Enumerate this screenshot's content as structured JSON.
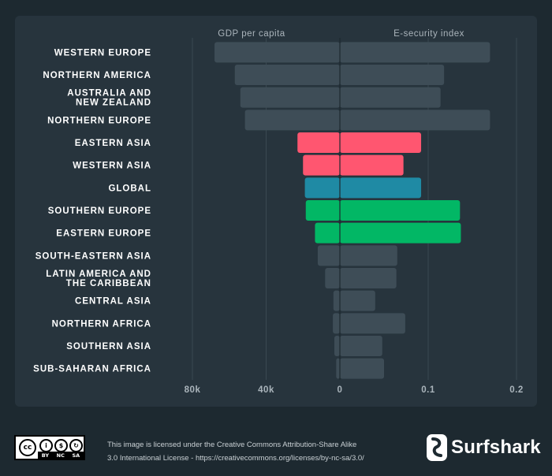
{
  "chart_data": {
    "type": "bar",
    "subtype": "diverging-horizontal",
    "left_header": "GDP per capita",
    "right_header": "E-security index",
    "left_axis": {
      "ticks": [
        "80k",
        "40k"
      ],
      "tick_values": [
        80000,
        40000
      ],
      "range": [
        0,
        82000
      ]
    },
    "center_tick": "0",
    "right_axis": {
      "ticks": [
        "0.1",
        "0.2"
      ],
      "tick_values": [
        0.1,
        0.2
      ],
      "range": [
        0,
        0.2
      ]
    },
    "colors": {
      "default": "#3e4d57",
      "red": "#ff5670",
      "teal": "#1f8aa4",
      "green": "#02b765",
      "global_label": "#1f8aa4",
      "label": "#ffffff"
    },
    "rows": [
      {
        "label": [
          "WESTERN EUROPE"
        ],
        "gdp": 68000,
        "esec": 0.17,
        "color": "default"
      },
      {
        "label": [
          "NORTHERN AMERICA"
        ],
        "gdp": 57000,
        "esec": 0.118,
        "color": "default"
      },
      {
        "label": [
          "AUSTRALIA AND",
          "NEW ZEALAND"
        ],
        "gdp": 54000,
        "esec": 0.114,
        "color": "default"
      },
      {
        "label": [
          "NORTHERN EUROPE"
        ],
        "gdp": 51500,
        "esec": 0.17,
        "color": "default"
      },
      {
        "label": [
          "EASTERN ASIA"
        ],
        "gdp": 23000,
        "esec": 0.092,
        "color": "red"
      },
      {
        "label": [
          "WESTERN ASIA"
        ],
        "gdp": 20000,
        "esec": 0.072,
        "color": "red"
      },
      {
        "label": [
          "GLOBAL"
        ],
        "gdp": 19000,
        "esec": 0.092,
        "color": "teal",
        "label_color": "global_label"
      },
      {
        "label": [
          "SOUTHERN EUROPE"
        ],
        "gdp": 18500,
        "esec": 0.136,
        "color": "green"
      },
      {
        "label": [
          "EASTERN EUROPE"
        ],
        "gdp": 13500,
        "esec": 0.137,
        "color": "green"
      },
      {
        "label": [
          "SOUTH-EASTERN ASIA"
        ],
        "gdp": 12000,
        "esec": 0.065,
        "color": "default"
      },
      {
        "label": [
          "LATIN AMERICA AND",
          "THE CARIBBEAN"
        ],
        "gdp": 8000,
        "esec": 0.064,
        "color": "default"
      },
      {
        "label": [
          "CENTRAL ASIA"
        ],
        "gdp": 3500,
        "esec": 0.04,
        "color": "default"
      },
      {
        "label": [
          "NORTHERN AFRICA"
        ],
        "gdp": 3800,
        "esec": 0.074,
        "color": "default"
      },
      {
        "label": [
          "SOUTHERN ASIA"
        ],
        "gdp": 3000,
        "esec": 0.048,
        "color": "default"
      },
      {
        "label": [
          "SUB-SAHARAN AFRICA"
        ],
        "gdp": 2000,
        "esec": 0.05,
        "color": "default"
      }
    ]
  },
  "footer": {
    "cc_badge": {
      "main": "cc",
      "terms": [
        "BY",
        "NC",
        "SA"
      ]
    },
    "license_line1": "This image is licensed under the Creative Commons Attribution-Share Alike",
    "license_line2": "3.0 International License - https://creativecommons.org/licenses/by-nc-sa/3.0/",
    "brand_name": "Surfshark",
    "brand_icon": "surfshark-logo-icon"
  }
}
